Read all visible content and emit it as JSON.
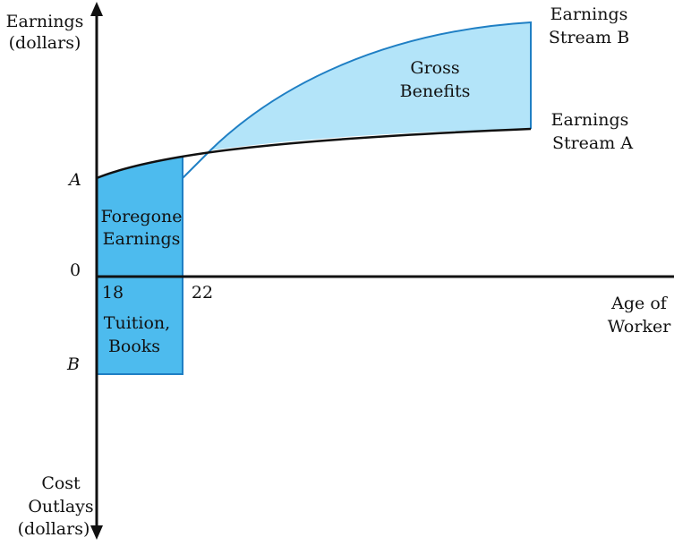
{
  "axes": {
    "y_top_label": [
      "Earnings",
      "(dollars)"
    ],
    "y_bottom_label": [
      "Cost",
      "Outlays",
      "(dollars)"
    ],
    "x_label": [
      "Age of",
      "Worker"
    ]
  },
  "ticks": {
    "zero": "0",
    "a": "A",
    "b": "B",
    "age_start": "18",
    "age_end": "22"
  },
  "areas": {
    "foregone": [
      "Foregone",
      "Earnings"
    ],
    "tuition": [
      "Tuition,",
      "Books"
    ],
    "gross_benefits": [
      "Gross",
      "Benefits"
    ]
  },
  "curves": {
    "stream_a": [
      "Earnings",
      "Stream A"
    ],
    "stream_b": [
      "Earnings",
      "Stream B"
    ]
  },
  "colors": {
    "investment_fill": "#4dbbee",
    "benefit_fill": "#b3e4f9",
    "stream_b_line": "#1f7fc4",
    "stream_a_line": "#111111",
    "axis": "#111111"
  }
}
